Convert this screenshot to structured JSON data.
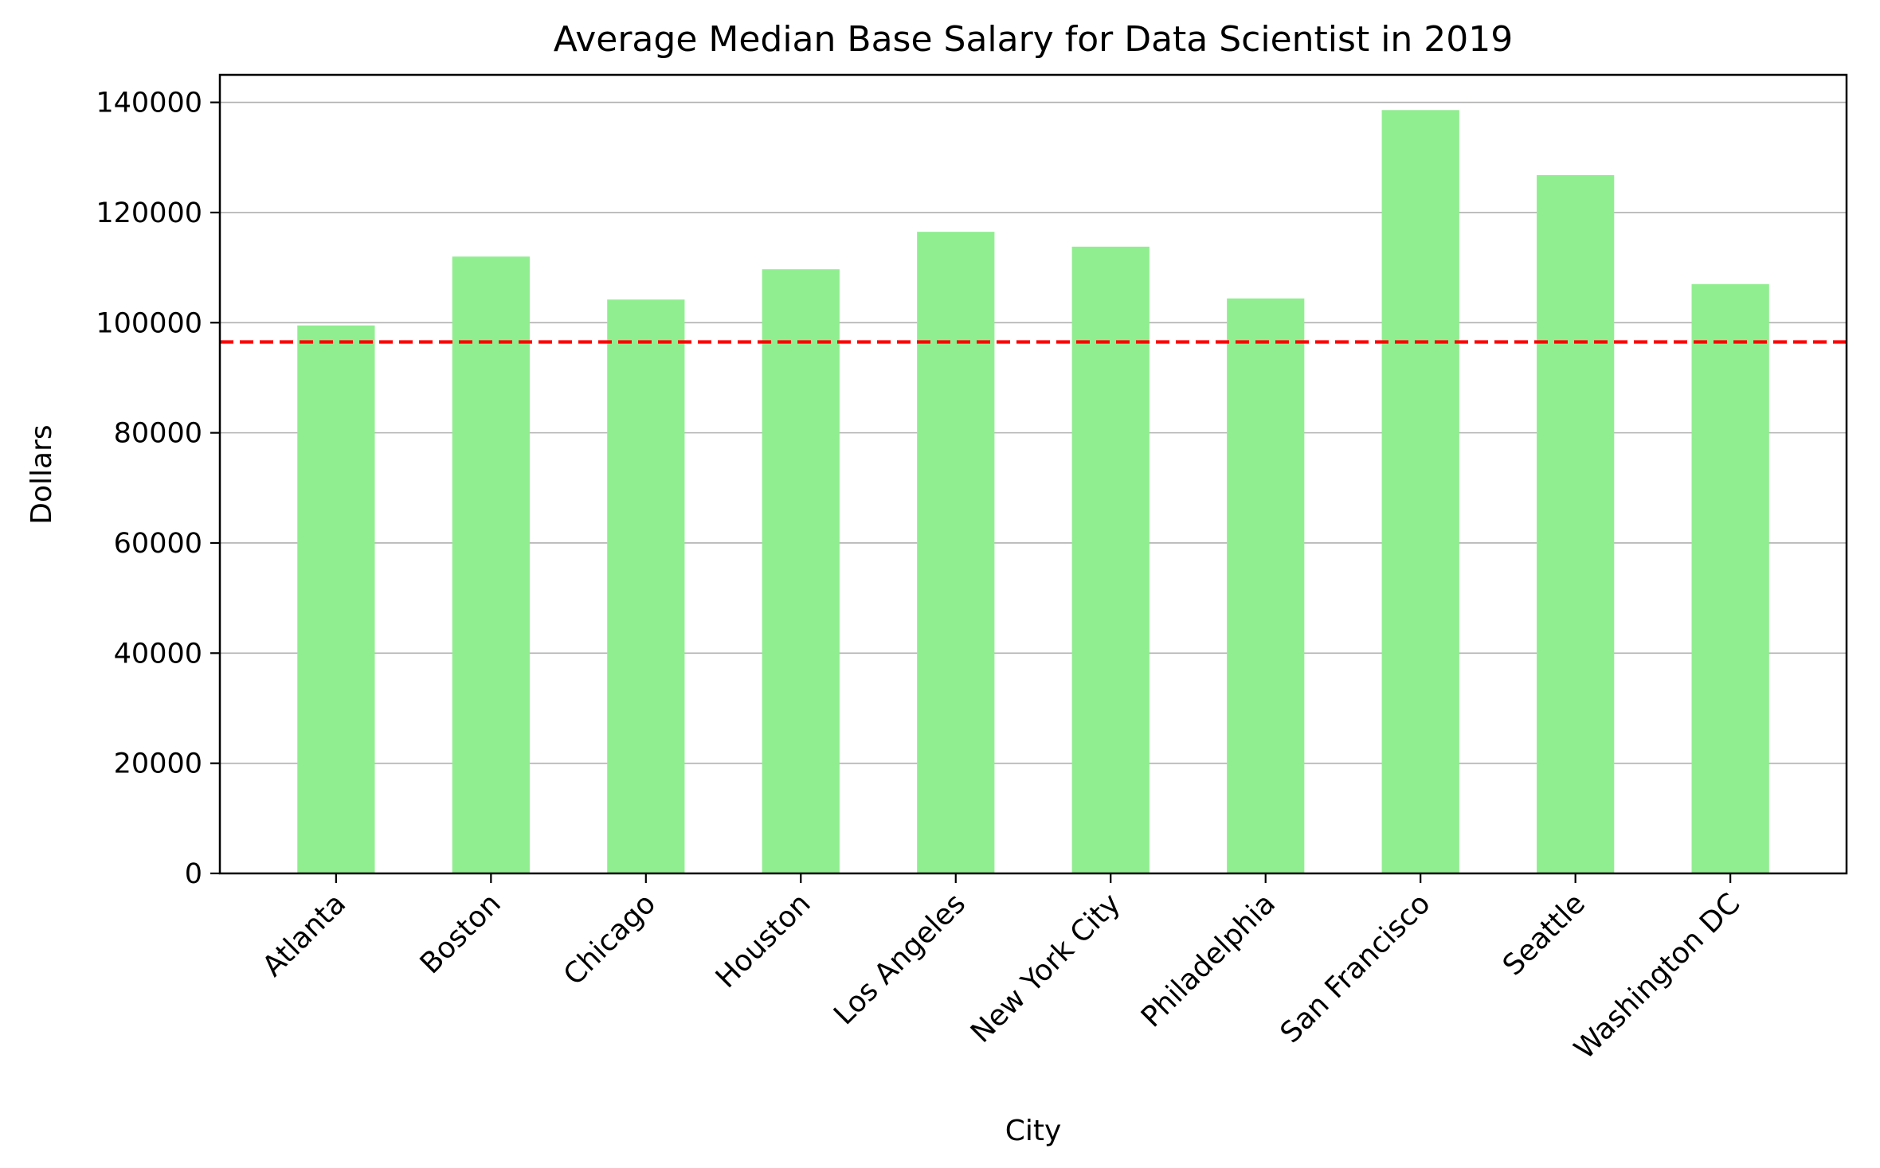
{
  "chart_data": {
    "type": "bar",
    "title": "Average Median Base Salary for Data Scientist in 2019",
    "xlabel": "City",
    "ylabel": "Dollars",
    "categories": [
      "Atlanta",
      "Boston",
      "Chicago",
      "Houston",
      "Los Angeles",
      "New York City",
      "Philadelphia",
      "San Francisco",
      "Seattle",
      "Washington DC"
    ],
    "values": [
      99500,
      112000,
      104200,
      109700,
      116500,
      113800,
      104400,
      138600,
      126800,
      107000
    ],
    "ylim": [
      0,
      145000
    ],
    "yticks": [
      0,
      20000,
      40000,
      60000,
      80000,
      100000,
      120000,
      140000
    ],
    "grid": "horizontal",
    "bar_color": "#90ee90",
    "reference_line": {
      "value": 96500,
      "style": "dashed",
      "color": "#ff0000"
    }
  }
}
